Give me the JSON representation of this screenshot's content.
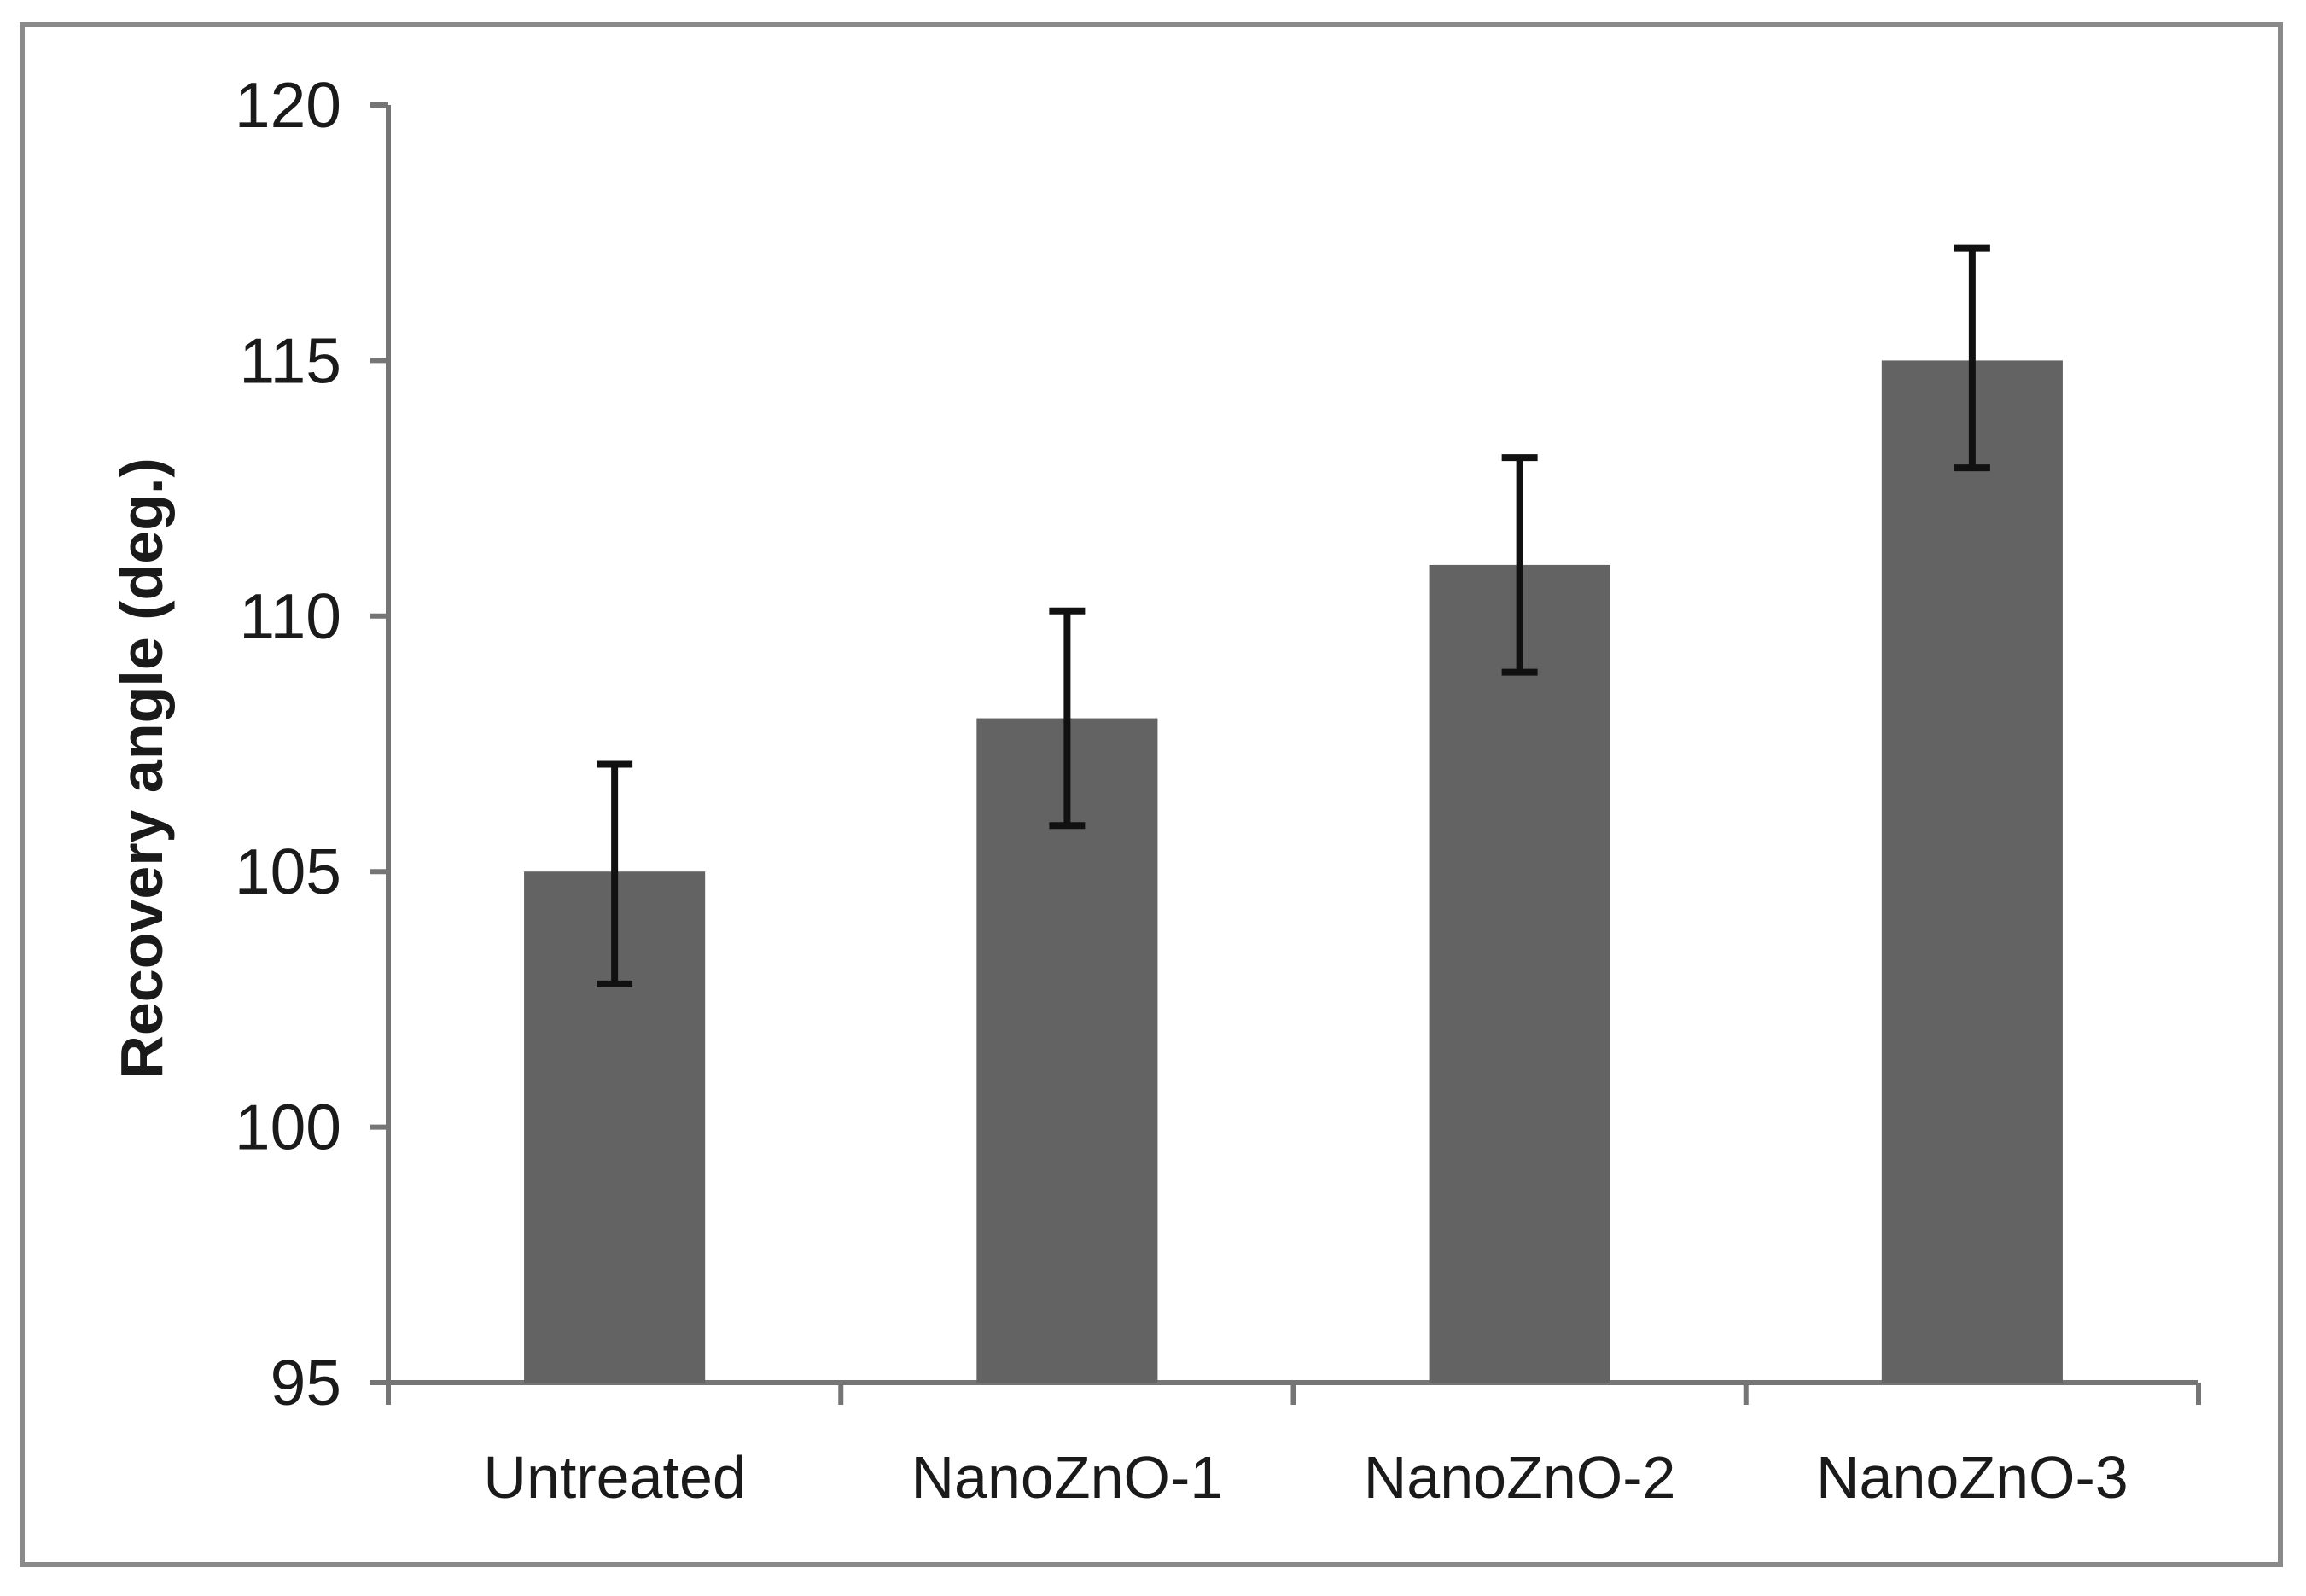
{
  "chart_data": {
    "type": "bar",
    "title": "",
    "categories": [
      "Untreated",
      "NanoZnO-1",
      "NanoZnO-2",
      "NanoZnO-3"
    ],
    "values": [
      105,
      108,
      111,
      115
    ],
    "error_bars": {
      "plus": [
        2.1,
        2.1,
        2.1,
        2.2
      ],
      "minus": [
        2.2,
        2.1,
        2.1,
        2.1
      ]
    },
    "xlabel": "",
    "ylabel": "Recovery angle (deg.)",
    "ylim": [
      95,
      120
    ],
    "yticks": [
      95,
      100,
      105,
      110,
      115,
      120
    ],
    "ytick_interval": 5,
    "grid": false,
    "legend": "none",
    "bar_color": "#636363",
    "error_bar_color": "#111111",
    "axis_color": "#757575",
    "text_color": "#1a1a1a",
    "frame_border_color": "#8a8a8a",
    "background_color": "#ffffff"
  }
}
